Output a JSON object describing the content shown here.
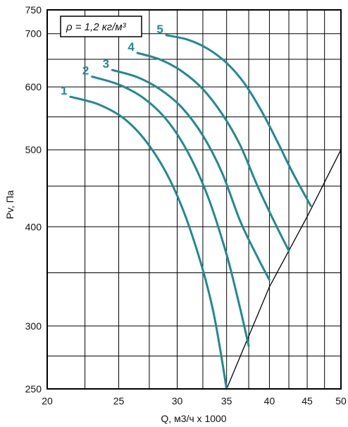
{
  "chart_data": {
    "type": "line",
    "xlabel": "Q, м3/ч х 1000",
    "ylabel": "Pv, Па",
    "xscale": "log",
    "yscale": "log",
    "xlim": [
      20,
      50
    ],
    "ylim": [
      250,
      750
    ],
    "x_ticks": [
      20,
      25,
      30,
      35,
      40,
      45,
      50
    ],
    "y_ticks": [
      250,
      300,
      400,
      500,
      600,
      700,
      750
    ],
    "x_grid": [
      20,
      22.5,
      25,
      27.5,
      30,
      32.5,
      35,
      37.5,
      40,
      42.5,
      45,
      47.5,
      50
    ],
    "y_grid": [
      250,
      275,
      300,
      350,
      400,
      450,
      500,
      550,
      600,
      650,
      700,
      750
    ],
    "grid": true,
    "annotation": "ρ = 1,2 кг/м³",
    "curve_color": "#1f8a93",
    "series": [
      {
        "name": "1",
        "x": [
          21.5,
          23.5,
          25.5,
          27.5,
          29.5,
          31.5,
          33.5,
          35.0
        ],
        "y": [
          583,
          570,
          546,
          506,
          453,
          388,
          316,
          250
        ]
      },
      {
        "name": "2",
        "x": [
          23.0,
          25.0,
          27.0,
          29.0,
          31.0,
          33.0,
          35.0,
          36.5,
          37.5
        ],
        "y": [
          618,
          604,
          581,
          546,
          497,
          437,
          369,
          316,
          283
        ]
      },
      {
        "name": "3",
        "x": [
          24.5,
          26.5,
          28.5,
          30.5,
          32.5,
          34.5,
          36.5,
          38.5,
          40.0
        ],
        "y": [
          630,
          617,
          595,
          564,
          521,
          468,
          407,
          367,
          343
        ]
      },
      {
        "name": "4",
        "x": [
          26.5,
          28.5,
          30.5,
          32.5,
          34.5,
          36.5,
          38.5,
          40.5,
          42.5
        ],
        "y": [
          662,
          649,
          627,
          596,
          555,
          507,
          451,
          408,
          373
        ]
      },
      {
        "name": "5",
        "x": [
          29.0,
          31.0,
          33.0,
          35.0,
          37.0,
          39.0,
          41.0,
          43.0,
          45.5
        ],
        "y": [
          697,
          688,
          670,
          643,
          606,
          560,
          512,
          468,
          425
        ]
      }
    ],
    "system_line": {
      "x": [
        35,
        40,
        45,
        50
      ],
      "y": [
        250,
        336,
        412,
        500
      ]
    }
  }
}
